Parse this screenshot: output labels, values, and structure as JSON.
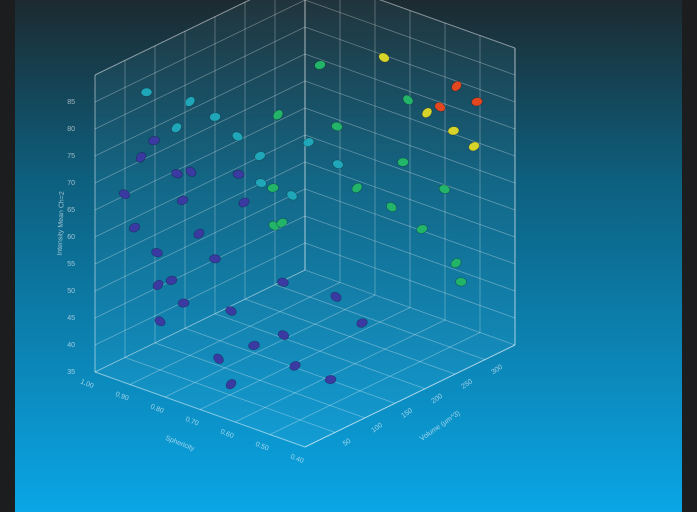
{
  "chart_data": {
    "type": "scatter3d",
    "y_label": "Intensity Mean Ch=2",
    "x_label": "Sphericity",
    "z_label": "Volume (µm^3)",
    "xlim": [
      0.4,
      1.0
    ],
    "ylim": [
      35,
      90
    ],
    "zlim": [
      0,
      350
    ],
    "xticks": [
      {
        "value": 0.4,
        "label": "0.40"
      },
      {
        "value": 0.5,
        "label": "0.50"
      },
      {
        "value": 0.6,
        "label": "0.60"
      },
      {
        "value": 0.7,
        "label": "0.70"
      },
      {
        "value": 0.8,
        "label": "0.80"
      },
      {
        "value": 0.9,
        "label": "0.90"
      },
      {
        "value": 1.0,
        "label": "1.00"
      }
    ],
    "yticks": [
      35,
      40,
      45,
      50,
      55,
      60,
      65,
      70,
      75,
      80,
      85
    ],
    "zticks": [
      50,
      100,
      150,
      200,
      250,
      300
    ],
    "grid": true,
    "series": [
      {
        "color": "#3b3aa3",
        "x": [
          0.92,
          0.9,
          0.95,
          0.93,
          0.9,
          0.88,
          0.85,
          0.9,
          0.87,
          0.86,
          0.84,
          0.82,
          0.88,
          0.91,
          0.8,
          0.78,
          0.83,
          0.75,
          0.7,
          0.65,
          0.6,
          0.72,
          0.68,
          0.55,
          0.62,
          0.58
        ],
        "y": [
          75,
          78,
          68,
          62,
          57,
          52,
          48,
          44,
          66,
          72,
          60,
          55,
          70,
          50,
          45,
          65,
          68,
          40,
          42,
          44,
          40,
          50,
          38,
          37,
          48,
          43
        ],
        "z": [
          30,
          40,
          20,
          25,
          45,
          35,
          60,
          50,
          70,
          55,
          80,
          95,
          90,
          75,
          110,
          120,
          140,
          60,
          90,
          110,
          100,
          150,
          40,
          130,
          180,
          200
        ]
      },
      {
        "color": "#1fa6b8",
        "x": [
          0.9,
          0.88,
          0.85,
          0.82,
          0.8,
          0.87,
          0.93,
          0.78,
          0.75,
          0.7
        ],
        "y": [
          82,
          78,
          74,
          70,
          66,
          80,
          86,
          62,
          72,
          68
        ],
        "z": [
          100,
          130,
          150,
          170,
          160,
          60,
          45,
          200,
          210,
          230
        ]
      },
      {
        "color": "#22b56a",
        "x": [
          0.82,
          0.8,
          0.78,
          0.74,
          0.72,
          0.68,
          0.6,
          0.65,
          0.58,
          0.55,
          0.5,
          0.52,
          0.62,
          0.7
        ],
        "y": [
          76,
          64,
          58,
          60,
          74,
          63,
          68,
          58,
          55,
          62,
          50,
          45,
          78,
          88
        ],
        "z": [
          200,
          180,
          170,
          160,
          240,
          250,
          280,
          290,
          300,
          320,
          310,
          330,
          300,
          200
        ]
      },
      {
        "color": "#d6d42a",
        "x": [
          0.6,
          0.55,
          0.62,
          0.5
        ],
        "y": [
          75,
          72,
          88,
          70
        ],
        "z": [
          320,
          335,
          260,
          340
        ]
      },
      {
        "color": "#e2471f",
        "x": [
          0.55,
          0.5,
          0.58
        ],
        "y": [
          80,
          78,
          76
        ],
        "z": [
          340,
          345,
          330
        ]
      }
    ]
  }
}
